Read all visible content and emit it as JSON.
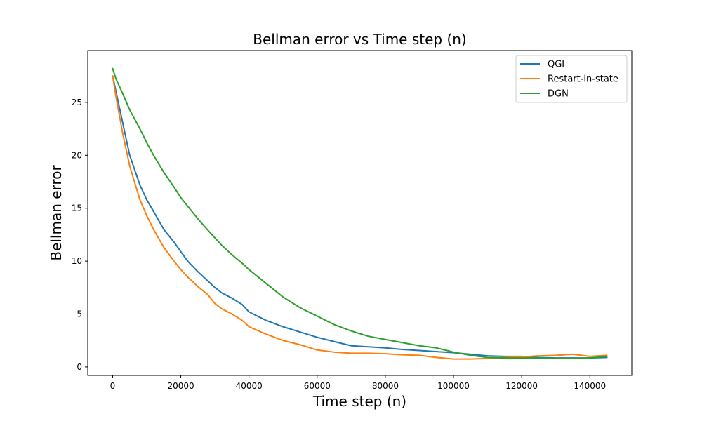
{
  "chart_data": {
    "type": "line",
    "title": "Bellman error vs Time step (n)",
    "xlabel": "Time step (n)",
    "ylabel": "Bellman error",
    "xlim": [
      -7300,
      152300
    ],
    "ylim": [
      -0.8,
      29.9
    ],
    "xticks": [
      0,
      20000,
      40000,
      60000,
      80000,
      100000,
      120000,
      140000
    ],
    "xtick_labels": [
      "0",
      "20000",
      "40000",
      "60000",
      "80000",
      "100000",
      "120000",
      "140000"
    ],
    "yticks": [
      0,
      5,
      10,
      15,
      20,
      25
    ],
    "ytick_labels": [
      "0",
      "5",
      "10",
      "15",
      "20",
      "25"
    ],
    "grid": false,
    "legend_position": "top-right",
    "series": [
      {
        "name": "QGI",
        "color": "#1f77b4",
        "x": [
          0,
          1000,
          3000,
          5000,
          8000,
          10000,
          12000,
          15000,
          18000,
          20000,
          22000,
          25000,
          28000,
          30000,
          32000,
          35000,
          38000,
          40000,
          45000,
          50000,
          55000,
          60000,
          65000,
          70000,
          75000,
          80000,
          85000,
          90000,
          95000,
          100000,
          105000,
          110000,
          115000,
          120000,
          125000,
          130000,
          135000,
          140000,
          145000
        ],
        "y": [
          27.5,
          26.0,
          23.0,
          20.0,
          17.2,
          15.8,
          14.7,
          13.0,
          11.8,
          10.9,
          10.0,
          9.0,
          8.1,
          7.5,
          7.0,
          6.5,
          5.9,
          5.2,
          4.4,
          3.8,
          3.3,
          2.8,
          2.4,
          2.0,
          1.9,
          1.8,
          1.65,
          1.55,
          1.45,
          1.35,
          1.2,
          1.05,
          1.0,
          1.0,
          0.9,
          0.85,
          0.85,
          0.85,
          0.9
        ]
      },
      {
        "name": "Restart-in-state",
        "color": "#ff7f0e",
        "x": [
          0,
          1000,
          3000,
          5000,
          8000,
          10000,
          12000,
          15000,
          18000,
          20000,
          22000,
          25000,
          28000,
          30000,
          32000,
          35000,
          38000,
          40000,
          45000,
          50000,
          55000,
          60000,
          65000,
          70000,
          75000,
          80000,
          85000,
          90000,
          95000,
          100000,
          105000,
          110000,
          115000,
          120000,
          125000,
          130000,
          135000,
          140000,
          145000
        ],
        "y": [
          27.5,
          25.5,
          22.0,
          19.0,
          15.8,
          14.3,
          13.0,
          11.3,
          10.0,
          9.2,
          8.5,
          7.6,
          6.8,
          6.0,
          5.5,
          5.0,
          4.4,
          3.8,
          3.1,
          2.5,
          2.1,
          1.6,
          1.4,
          1.3,
          1.3,
          1.25,
          1.15,
          1.1,
          0.9,
          0.75,
          0.75,
          0.8,
          0.9,
          0.95,
          1.05,
          1.1,
          1.2,
          1.0,
          1.1
        ]
      },
      {
        "name": "DGN",
        "color": "#2ca02c",
        "x": [
          0,
          1000,
          3000,
          5000,
          8000,
          10000,
          12000,
          15000,
          18000,
          20000,
          22000,
          25000,
          28000,
          30000,
          32000,
          35000,
          38000,
          40000,
          45000,
          50000,
          55000,
          60000,
          65000,
          70000,
          75000,
          80000,
          85000,
          90000,
          95000,
          100000,
          105000,
          110000,
          115000,
          120000,
          125000,
          130000,
          135000,
          140000,
          145000
        ],
        "y": [
          28.2,
          27.2,
          25.8,
          24.3,
          22.5,
          21.2,
          20.0,
          18.4,
          17.0,
          16.0,
          15.2,
          14.0,
          12.9,
          12.2,
          11.5,
          10.6,
          9.8,
          9.2,
          7.9,
          6.6,
          5.6,
          4.8,
          4.0,
          3.4,
          2.9,
          2.6,
          2.3,
          2.0,
          1.8,
          1.4,
          1.1,
          0.9,
          0.85,
          0.85,
          0.85,
          0.8,
          0.8,
          0.85,
          1.0
        ]
      }
    ]
  }
}
